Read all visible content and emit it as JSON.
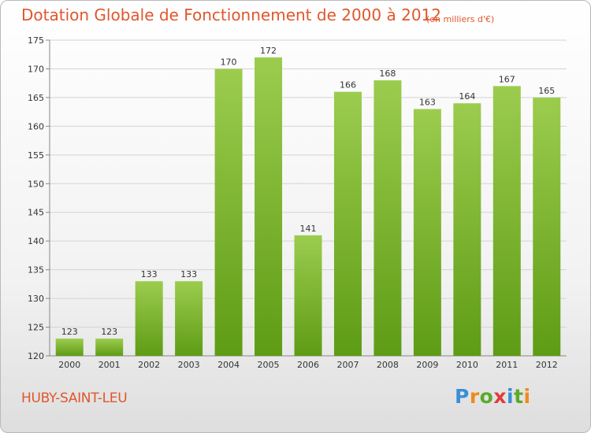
{
  "header": {
    "title": "Dotation Globale de Fonctionnement de 2000 à 2012",
    "unit": "(en milliers d'€)"
  },
  "footer": {
    "city": "HUBY-SAINT-LEU",
    "logo": [
      "P",
      "r",
      "o",
      "x",
      "i",
      "t",
      "i"
    ],
    "logo_colors": [
      "#3a8fd6",
      "#f08a1c",
      "#5aaa2a",
      "#e23b3b",
      "#3a8fd6",
      "#5aaa2a",
      "#f08a1c"
    ]
  },
  "chart_data": {
    "type": "bar",
    "title": "Dotation Globale de Fonctionnement de 2000 à 2012",
    "categories": [
      "2000",
      "2001",
      "2002",
      "2003",
      "2004",
      "2005",
      "2006",
      "2007",
      "2008",
      "2009",
      "2010",
      "2011",
      "2012"
    ],
    "values": [
      123,
      123,
      133,
      133,
      170,
      172,
      141,
      166,
      168,
      163,
      164,
      167,
      165
    ],
    "data_labels": [
      "123",
      "123",
      "133",
      "133",
      "170",
      "172",
      "141",
      "166",
      "168",
      "163",
      "164",
      "167",
      "165"
    ],
    "y_ticks": [
      "120",
      "125",
      "130",
      "135",
      "140",
      "145",
      "150",
      "155",
      "160",
      "165",
      "170",
      "175"
    ],
    "ylim": [
      120,
      175
    ],
    "grid": true,
    "colors": {
      "bar_top": "#9ccc4e",
      "bar_bottom": "#5e9c15",
      "grid": "#d4d4d4",
      "text": "#e0572b"
    }
  }
}
